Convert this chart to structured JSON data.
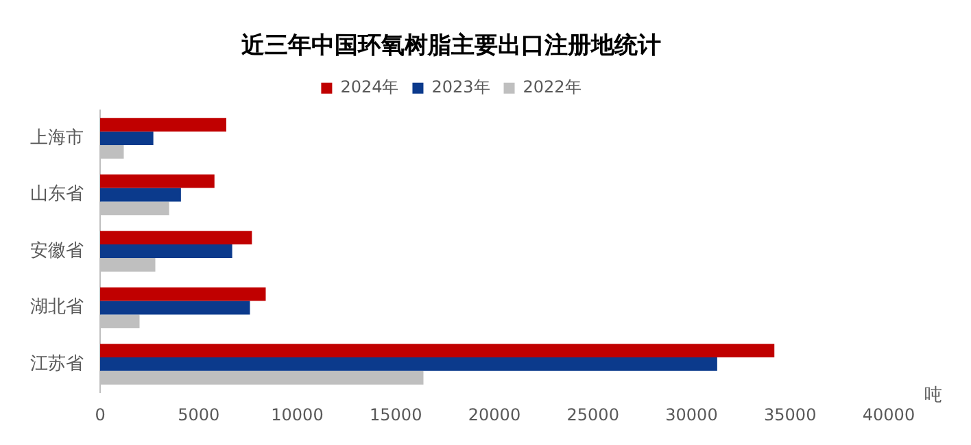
{
  "chart_data": {
    "type": "bar",
    "orientation": "horizontal",
    "title": "近三年中国环氧树脂主要出口注册地统计",
    "xlabel": "吨",
    "categories": [
      "上海市",
      "山东省",
      "安徽省",
      "湖北省",
      "江苏省"
    ],
    "series": [
      {
        "name": "2024年",
        "color": "#c00000",
        "values": [
          6400,
          5800,
          7700,
          8400,
          34200
        ]
      },
      {
        "name": "2023年",
        "color": "#0b3a8c",
        "values": [
          2700,
          4100,
          6700,
          7600,
          31300
        ]
      },
      {
        "name": "2022年",
        "color": "#bfbfbf",
        "values": [
          1200,
          3500,
          2800,
          2000,
          16400
        ]
      }
    ],
    "xlim": [
      0,
      40000
    ],
    "xticks": [
      0,
      5000,
      10000,
      15000,
      20000,
      25000,
      30000,
      35000,
      40000
    ],
    "grid": false,
    "legend": "top"
  }
}
